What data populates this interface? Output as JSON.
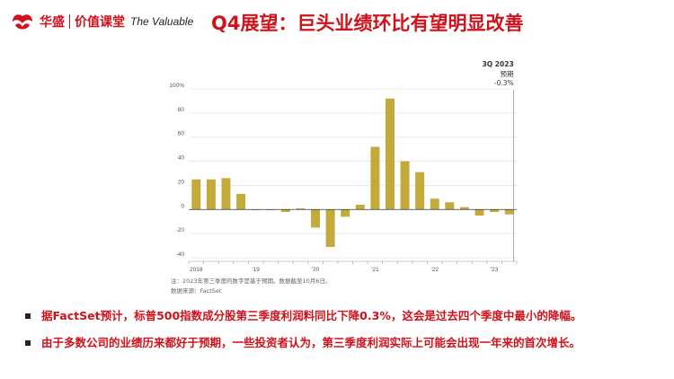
{
  "header": {
    "brand_cn": "华盛",
    "brand_product": "价值课堂",
    "brand_en": "The Valuable",
    "title": "Q4展望：巨头业绩环比有望明显改善",
    "brand_color": "#d0121b"
  },
  "chart_data": {
    "type": "bar",
    "bar_color": "#c4a93b",
    "ylim": [
      -40,
      100
    ],
    "y_ticks": [
      -40,
      -20,
      0,
      20,
      40,
      60,
      80,
      100
    ],
    "y_tick_labels": [
      "-40",
      "-20",
      "0",
      "20",
      "40",
      "60",
      "80",
      "100%"
    ],
    "x_tick_labels": [
      "2018",
      "'19",
      "'20",
      "'21",
      "'22",
      "'23"
    ],
    "series": [
      {
        "values": [
          25,
          25,
          26,
          13,
          0,
          0,
          -2,
          1,
          -15,
          -31,
          -6,
          4,
          52,
          92,
          40,
          31,
          9,
          6,
          2,
          -5,
          -2,
          -4
        ]
      }
    ],
    "annotation": {
      "line1": "3Q 2023",
      "line2": "预期",
      "line3": "-0.3%"
    },
    "note": "注：2023年第三季度的数字是基于预期。数据截至10月6日。",
    "source": "数据来源：FactSet"
  },
  "bullets": [
    "据FactSet预计，标普500指数成分股第三季度利润料同比下降0.3%，这会是过去四个季度中最小的降幅。",
    "由于多数公司的业绩历来都好于预期，一些投资者认为，第三季度利润实际上可能会出现一年来的首次增长。"
  ]
}
